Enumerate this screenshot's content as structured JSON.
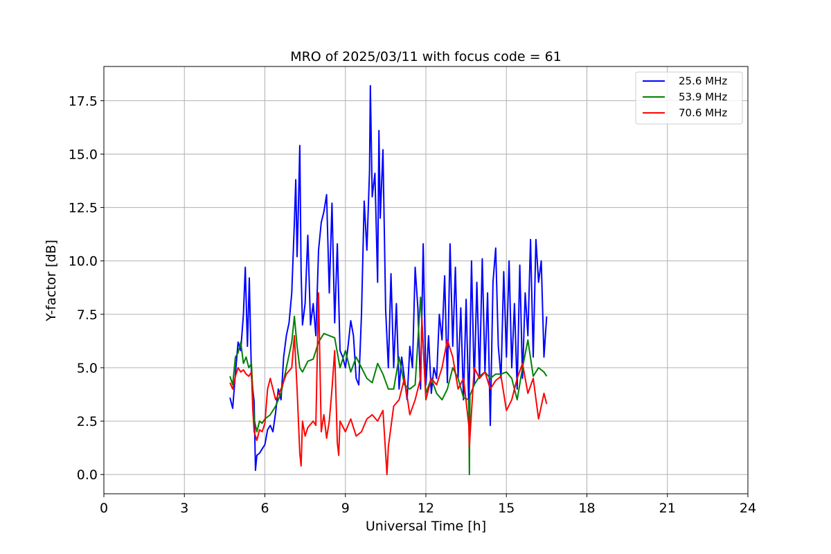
{
  "chart_data": {
    "type": "line",
    "title": "MRO of 2025/03/11 with focus code = 61",
    "xlabel": "Universal Time [h]",
    "ylabel": "Y-factor [dB]",
    "xlim": [
      0,
      24
    ],
    "ylim": [
      -0.9,
      19.1
    ],
    "xticks": [
      0,
      3,
      6,
      9,
      12,
      15,
      18,
      21,
      24
    ],
    "xtick_labels": [
      "0",
      "3",
      "6",
      "9",
      "12",
      "15",
      "18",
      "21",
      "24"
    ],
    "yticks": [
      0.0,
      2.5,
      5.0,
      7.5,
      10.0,
      12.5,
      15.0,
      17.5
    ],
    "ytick_labels": [
      "0.0",
      "2.5",
      "5.0",
      "7.5",
      "10.0",
      "12.5",
      "15.0",
      "17.5"
    ],
    "grid": true,
    "legend_position": "top-right",
    "series": [
      {
        "name": "25.6 MHz",
        "color": "#0000ff",
        "x": [
          4.7,
          4.8,
          4.9,
          5.0,
          5.1,
          5.2,
          5.27,
          5.35,
          5.42,
          5.5,
          5.6,
          5.65,
          5.7,
          5.8,
          5.9,
          6.0,
          6.1,
          6.2,
          6.3,
          6.4,
          6.5,
          6.6,
          6.7,
          6.8,
          6.9,
          7.0,
          7.1,
          7.15,
          7.2,
          7.25,
          7.3,
          7.35,
          7.4,
          7.5,
          7.6,
          7.7,
          7.8,
          7.9,
          8.0,
          8.1,
          8.2,
          8.3,
          8.4,
          8.5,
          8.6,
          8.7,
          8.8,
          8.9,
          9.0,
          9.1,
          9.2,
          9.3,
          9.4,
          9.5,
          9.6,
          9.7,
          9.8,
          9.9,
          9.93,
          10.0,
          10.1,
          10.2,
          10.25,
          10.3,
          10.4,
          10.5,
          10.6,
          10.7,
          10.8,
          10.9,
          11.0,
          11.1,
          11.2,
          11.3,
          11.4,
          11.5,
          11.6,
          11.7,
          11.8,
          11.9,
          12.0,
          12.1,
          12.2,
          12.3,
          12.4,
          12.5,
          12.6,
          12.7,
          12.8,
          12.9,
          13.0,
          13.1,
          13.2,
          13.3,
          13.4,
          13.5,
          13.6,
          13.7,
          13.8,
          13.9,
          14.0,
          14.1,
          14.2,
          14.3,
          14.4,
          14.5,
          14.6,
          14.7,
          14.8,
          14.9,
          15.0,
          15.1,
          15.2,
          15.3,
          15.4,
          15.5,
          15.6,
          15.7,
          15.8,
          15.9,
          16.0,
          16.1,
          16.2,
          16.3,
          16.4,
          16.5
        ],
        "y": [
          3.6,
          3.1,
          4.7,
          6.2,
          5.8,
          7.5,
          9.7,
          6.0,
          9.2,
          4.6,
          3.4,
          0.2,
          0.9,
          1.0,
          1.2,
          1.4,
          2.1,
          2.3,
          2.0,
          2.9,
          4.0,
          3.5,
          5.5,
          6.5,
          7.1,
          8.5,
          11.8,
          13.8,
          10.2,
          12.5,
          15.4,
          9.5,
          7.0,
          8.0,
          11.2,
          7.0,
          8.0,
          6.5,
          10.5,
          11.8,
          12.3,
          13.1,
          8.5,
          12.7,
          7.1,
          10.8,
          5.8,
          5.5,
          5.0,
          6.0,
          7.2,
          6.5,
          4.5,
          4.2,
          7.5,
          12.8,
          10.5,
          14.2,
          18.2,
          13.0,
          14.1,
          9.0,
          16.1,
          12.0,
          15.2,
          7.7,
          5.0,
          9.4,
          5.0,
          8.0,
          4.0,
          5.5,
          4.5,
          3.5,
          6.0,
          5.0,
          9.7,
          7.8,
          4.0,
          10.8,
          4.2,
          6.5,
          3.8,
          5.0,
          4.5,
          7.5,
          6.3,
          9.3,
          4.3,
          10.8,
          6.0,
          9.7,
          4.5,
          7.8,
          3.5,
          8.2,
          3.1,
          10.0,
          4.2,
          9.0,
          4.5,
          10.1,
          4.8,
          8.5,
          2.3,
          9.0,
          10.6,
          6.0,
          4.5,
          9.5,
          5.5,
          10.0,
          5.0,
          8.0,
          4.0,
          9.8,
          4.5,
          8.5,
          6.5,
          11.0,
          5.5,
          11.0,
          9.0,
          10.0,
          5.5,
          7.4
        ]
      },
      {
        "name": "53.9 MHz",
        "color": "#008000",
        "x": [
          4.7,
          4.8,
          4.9,
          5.0,
          5.1,
          5.2,
          5.3,
          5.4,
          5.5,
          5.6,
          5.7,
          5.8,
          5.9,
          6.0,
          6.2,
          6.4,
          6.6,
          6.8,
          7.0,
          7.1,
          7.2,
          7.3,
          7.4,
          7.6,
          7.8,
          8.0,
          8.2,
          8.4,
          8.6,
          8.8,
          9.0,
          9.2,
          9.4,
          9.6,
          9.8,
          10.0,
          10.2,
          10.4,
          10.6,
          10.8,
          11.0,
          11.2,
          11.4,
          11.6,
          11.8,
          12.0,
          12.2,
          12.4,
          12.6,
          12.8,
          13.0,
          13.2,
          13.4,
          13.6,
          13.62,
          13.64,
          13.8,
          14.0,
          14.2,
          14.4,
          14.6,
          14.8,
          15.0,
          15.2,
          15.4,
          15.6,
          15.8,
          16.0,
          16.2,
          16.4,
          16.5
        ],
        "y": [
          4.6,
          4.2,
          5.5,
          5.7,
          6.2,
          5.2,
          5.5,
          5.0,
          5.2,
          2.6,
          2.0,
          2.5,
          2.4,
          2.6,
          2.8,
          3.2,
          3.8,
          5.0,
          6.2,
          7.4,
          6.0,
          5.0,
          4.8,
          5.3,
          5.4,
          6.2,
          6.6,
          6.5,
          6.4,
          5.0,
          5.8,
          4.8,
          5.5,
          5.0,
          4.5,
          4.3,
          5.2,
          4.7,
          4.0,
          4.0,
          5.5,
          4.2,
          4.0,
          4.2,
          8.3,
          3.8,
          4.5,
          3.8,
          3.5,
          4.0,
          5.0,
          4.5,
          3.6,
          3.5,
          0.0,
          3.7,
          4.2,
          4.6,
          4.8,
          4.5,
          4.7,
          4.7,
          4.8,
          4.5,
          3.5,
          5.0,
          6.3,
          4.6,
          5.0,
          4.8,
          4.6
        ]
      },
      {
        "name": "70.6 MHz",
        "color": "#ff0000",
        "x": [
          4.7,
          4.8,
          4.9,
          5.0,
          5.1,
          5.2,
          5.3,
          5.4,
          5.5,
          5.55,
          5.6,
          5.7,
          5.8,
          5.9,
          6.0,
          6.1,
          6.2,
          6.4,
          6.6,
          6.8,
          7.0,
          7.1,
          7.2,
          7.3,
          7.35,
          7.4,
          7.5,
          7.6,
          7.8,
          7.9,
          8.0,
          8.1,
          8.2,
          8.3,
          8.4,
          8.5,
          8.6,
          8.7,
          8.75,
          8.8,
          9.0,
          9.2,
          9.4,
          9.6,
          9.8,
          10.0,
          10.2,
          10.4,
          10.55,
          10.6,
          10.8,
          11.0,
          11.2,
          11.4,
          11.6,
          11.8,
          11.85,
          12.0,
          12.2,
          12.4,
          12.6,
          12.8,
          13.0,
          13.2,
          13.4,
          13.6,
          13.62,
          13.8,
          14.0,
          14.2,
          14.4,
          14.6,
          14.8,
          15.0,
          15.2,
          15.4,
          15.6,
          15.8,
          16.0,
          16.2,
          16.4,
          16.5
        ],
        "y": [
          4.3,
          4.0,
          4.6,
          5.0,
          4.8,
          4.9,
          4.7,
          4.6,
          4.8,
          3.0,
          2.0,
          1.6,
          2.1,
          2.0,
          2.4,
          4.0,
          4.5,
          3.5,
          4.0,
          4.7,
          5.0,
          6.5,
          4.0,
          1.0,
          0.4,
          2.5,
          1.8,
          2.2,
          2.5,
          2.3,
          8.5,
          2.0,
          2.8,
          1.7,
          2.5,
          4.0,
          5.8,
          1.5,
          0.9,
          2.5,
          2.0,
          2.6,
          1.8,
          2.0,
          2.6,
          2.8,
          2.5,
          3.0,
          0.0,
          1.3,
          3.2,
          3.5,
          4.5,
          2.8,
          3.5,
          4.5,
          7.3,
          3.5,
          4.5,
          4.2,
          5.0,
          6.3,
          5.5,
          4.0,
          4.5,
          2.3,
          1.3,
          5.0,
          4.5,
          4.8,
          4.0,
          4.4,
          4.6,
          3.0,
          3.5,
          4.5,
          5.2,
          3.8,
          4.5,
          2.6,
          3.8,
          3.3
        ]
      }
    ]
  }
}
